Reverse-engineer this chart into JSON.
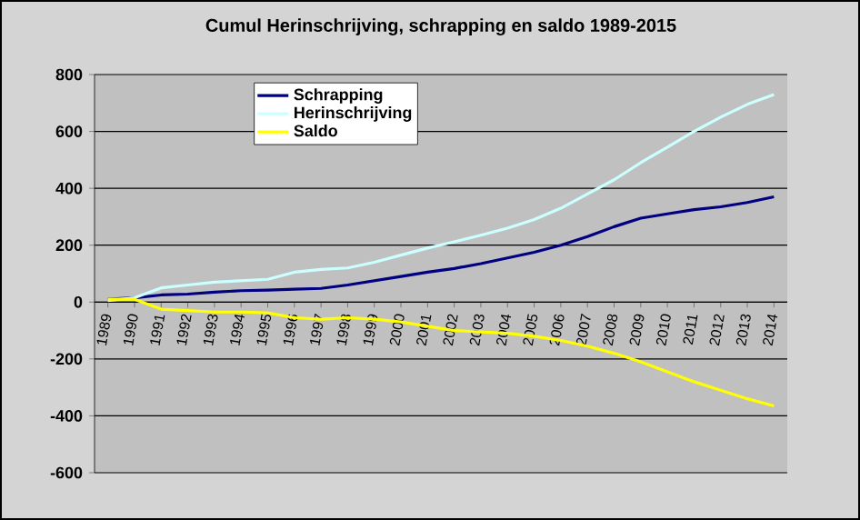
{
  "chart_data": {
    "type": "line",
    "title": "Cumul Herinschrijving, schrapping en saldo 1989-2015",
    "categories": [
      "1989",
      "1990",
      "1991",
      "1992",
      "1993",
      "1994",
      "1995",
      "1996",
      "1997",
      "1998",
      "1999",
      "2000",
      "2001",
      "2002",
      "2003",
      "2004",
      "2005",
      "2006",
      "2007",
      "2008",
      "2009",
      "2010",
      "2011",
      "2012",
      "2013",
      "2014"
    ],
    "series": [
      {
        "name": "Schrapping",
        "color": "#000080",
        "values": [
          10,
          15,
          25,
          28,
          35,
          40,
          42,
          45,
          48,
          60,
          75,
          90,
          105,
          118,
          135,
          155,
          175,
          200,
          230,
          265,
          295,
          310,
          325,
          335,
          350,
          370
        ]
      },
      {
        "name": "Herinschrijving",
        "color": "#ccffff",
        "values": [
          5,
          15,
          50,
          60,
          70,
          75,
          80,
          105,
          115,
          120,
          140,
          165,
          190,
          212,
          235,
          260,
          290,
          330,
          380,
          430,
          490,
          545,
          600,
          650,
          695,
          730
        ]
      },
      {
        "name": "Saldo",
        "color": "#ffff00",
        "values": [
          10,
          10,
          -25,
          -30,
          -35,
          -35,
          -38,
          -55,
          -60,
          -55,
          -60,
          -70,
          -85,
          -100,
          -105,
          -110,
          -120,
          -135,
          -155,
          -180,
          -210,
          -245,
          -280,
          -310,
          -340,
          -365
        ]
      }
    ],
    "ylim": [
      -600,
      800
    ],
    "yticks": [
      -600,
      -400,
      -200,
      0,
      200,
      400,
      600,
      800
    ],
    "grid": "y",
    "legend": "top",
    "marker": "none",
    "line_style": "solid"
  }
}
